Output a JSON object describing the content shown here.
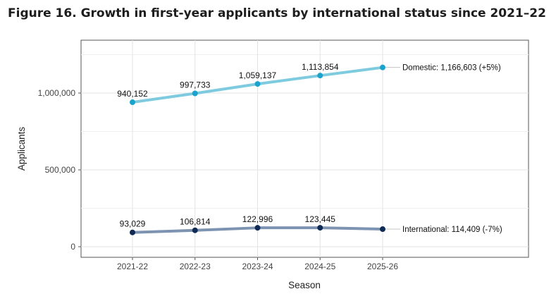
{
  "figure": {
    "title": "Figure 16. Growth in first-year applicants by international status since 2021–22"
  },
  "chart_data": {
    "type": "line",
    "categories": [
      "2021-22",
      "2022-23",
      "2023-24",
      "2024-25",
      "2025-26"
    ],
    "xlabel": "Season",
    "ylabel": "Applicants",
    "ylim": [
      -40000,
      1300000
    ],
    "yticks": [
      0,
      500000,
      1000000
    ],
    "ytick_labels": [
      "0",
      "500,000",
      "1,000,000"
    ],
    "grid": true,
    "series": [
      {
        "key": "domestic",
        "color": "#7ecbe0",
        "point_color": "#1aa3cc",
        "values": [
          940152,
          997733,
          1059137,
          1113854,
          1166603
        ],
        "point_labels": [
          "940,152",
          "997,733",
          "1,059,137",
          "1,113,854",
          ""
        ],
        "end_label": "Domestic: 1,166,603 (+5%)"
      },
      {
        "key": "international",
        "color": "#7d93b2",
        "point_color": "#0f2b55",
        "values": [
          93029,
          106814,
          122996,
          123445,
          114409
        ],
        "point_labels": [
          "93,029",
          "106,814",
          "122,996",
          "123,445",
          ""
        ],
        "end_label": "International: 114,409 (-7%)"
      }
    ]
  }
}
